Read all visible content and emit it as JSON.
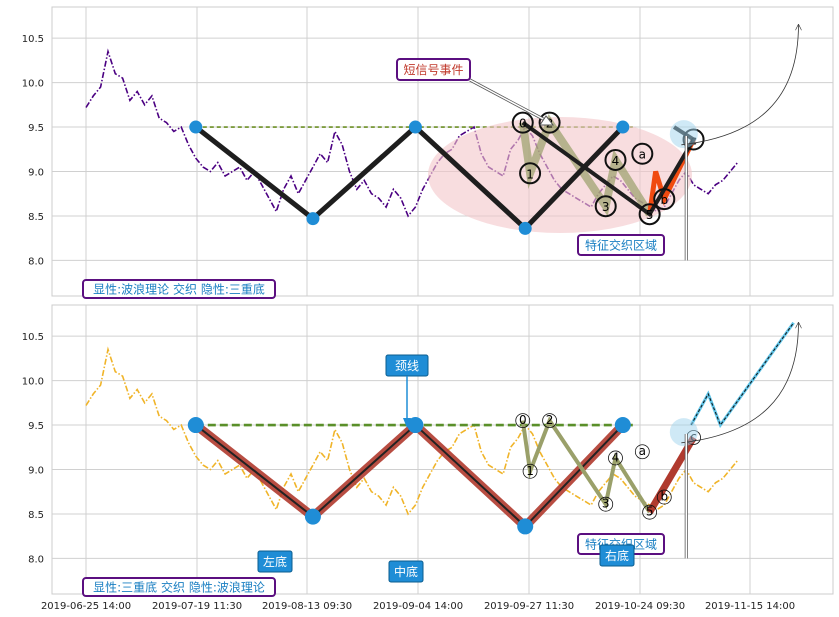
{
  "chart_data": [
    {
      "type": "line",
      "ylim": [
        7.6,
        10.85
      ],
      "yticks": [
        8.0,
        8.5,
        9.0,
        9.5,
        10.0,
        10.5
      ],
      "xtick_labels": [
        "2019-06-25 14:00",
        "2019-07-19 11:30",
        "2019-08-13 09:30",
        "2019-09-04 14:00",
        "2019-09-27 11:30",
        "2019-10-24 09:30",
        "2019-11-15 14:00"
      ],
      "grid": true,
      "series": [
        {
          "style": "dash-dot",
          "color": "#4b0082",
          "x": [
            0,
            3,
            6,
            9,
            12,
            15,
            18,
            21,
            24,
            27,
            30,
            33,
            36,
            39,
            42,
            45,
            48,
            51,
            54,
            57,
            60,
            63,
            66,
            69,
            72,
            75,
            78,
            81,
            84,
            87,
            90,
            93,
            96,
            99,
            102,
            105,
            108,
            111,
            114,
            117,
            120,
            123,
            126,
            129,
            132,
            135,
            138,
            141,
            144,
            147,
            150,
            153,
            156,
            159,
            162,
            165,
            168,
            171,
            174,
            177,
            180,
            183,
            186,
            189,
            192,
            195,
            198,
            201,
            204,
            207,
            210,
            213,
            216,
            219,
            222,
            225,
            228,
            231,
            234,
            237,
            240,
            243,
            246,
            249,
            252,
            255,
            258,
            261,
            264,
            267
          ],
          "y": [
            9.72,
            9.85,
            9.95,
            10.35,
            10.1,
            10.05,
            9.8,
            9.9,
            9.75,
            9.85,
            9.6,
            9.55,
            9.45,
            9.5,
            9.3,
            9.15,
            9.05,
            9.0,
            9.1,
            8.95,
            9.0,
            9.05,
            8.9,
            9.0,
            8.85,
            8.7,
            8.55,
            8.8,
            8.95,
            8.75,
            8.9,
            9.05,
            9.2,
            9.1,
            9.45,
            9.3,
            9.0,
            8.8,
            8.9,
            8.75,
            8.7,
            8.6,
            8.8,
            8.7,
            8.5,
            8.6,
            8.8,
            8.95,
            9.1,
            9.2,
            9.25,
            9.4,
            9.45,
            9.5,
            9.2,
            9.05,
            9.0,
            8.95,
            9.25,
            9.35,
            9.5,
            9.4,
            9.2,
            9.05,
            8.9,
            8.8,
            8.75,
            8.7,
            8.65,
            8.6,
            8.75,
            8.85,
            8.95,
            8.9,
            8.8,
            8.7,
            8.65,
            8.6,
            8.55,
            8.6,
            8.75,
            8.9,
            9.0,
            8.85,
            8.8,
            8.75,
            8.85,
            8.9,
            9.0,
            9.1
          ]
        }
      ],
      "pattern_points": {
        "x": [
          45,
          93,
          135,
          180,
          220
        ],
        "y": [
          9.5,
          8.47,
          9.5,
          8.36,
          9.5
        ]
      },
      "wave_points": [
        {
          "label": "0",
          "x": 179,
          "y": 9.55
        },
        {
          "label": "1",
          "x": 182,
          "y": 8.98
        },
        {
          "label": "2",
          "x": 190,
          "y": 9.55
        },
        {
          "label": "3",
          "x": 213,
          "y": 8.61
        },
        {
          "label": "4",
          "x": 217,
          "y": 9.13
        },
        {
          "label": "5",
          "x": 231,
          "y": 8.52
        },
        {
          "label": "a",
          "x": 228,
          "y": 9.2
        },
        {
          "label": "b",
          "x": 237,
          "y": 8.69
        },
        {
          "label": "c",
          "x": 249,
          "y": 9.36
        }
      ],
      "annotations": {
        "short_signal": "短信号事件",
        "feature_zone": "特征交织区域",
        "mode": "显性:波浪理论 交织 隐性:三重底"
      }
    },
    {
      "type": "line",
      "ylim": [
        7.6,
        10.85
      ],
      "yticks": [
        8.0,
        8.5,
        9.0,
        9.5,
        10.0,
        10.5
      ],
      "xtick_labels": [
        "2019-06-25 14:00",
        "2019-07-19 11:30",
        "2019-08-13 09:30",
        "2019-09-04 14:00",
        "2019-09-27 11:30",
        "2019-10-24 09:30",
        "2019-11-15 14:00"
      ],
      "grid": true,
      "series": [
        {
          "style": "dash-dot",
          "color": "#f0b429",
          "x": [
            0,
            3,
            6,
            9,
            12,
            15,
            18,
            21,
            24,
            27,
            30,
            33,
            36,
            39,
            42,
            45,
            48,
            51,
            54,
            57,
            60,
            63,
            66,
            69,
            72,
            75,
            78,
            81,
            84,
            87,
            90,
            93,
            96,
            99,
            102,
            105,
            108,
            111,
            114,
            117,
            120,
            123,
            126,
            129,
            132,
            135,
            138,
            141,
            144,
            147,
            150,
            153,
            156,
            159,
            162,
            165,
            168,
            171,
            174,
            177,
            180,
            183,
            186,
            189,
            192,
            195,
            198,
            201,
            204,
            207,
            210,
            213,
            216,
            219,
            222,
            225,
            228,
            231,
            234,
            237,
            240,
            243,
            246,
            249,
            252,
            255,
            258,
            261,
            264,
            267
          ],
          "y": [
            9.72,
            9.85,
            9.95,
            10.35,
            10.1,
            10.05,
            9.8,
            9.9,
            9.75,
            9.85,
            9.6,
            9.55,
            9.45,
            9.5,
            9.3,
            9.15,
            9.05,
            9.0,
            9.1,
            8.95,
            9.0,
            9.05,
            8.9,
            9.0,
            8.85,
            8.7,
            8.55,
            8.8,
            8.95,
            8.75,
            8.9,
            9.05,
            9.2,
            9.1,
            9.45,
            9.3,
            9.0,
            8.8,
            8.9,
            8.75,
            8.7,
            8.6,
            8.8,
            8.7,
            8.5,
            8.6,
            8.8,
            8.95,
            9.1,
            9.2,
            9.25,
            9.4,
            9.45,
            9.5,
            9.2,
            9.05,
            9.0,
            8.95,
            9.25,
            9.35,
            9.5,
            9.4,
            9.2,
            9.05,
            8.9,
            8.8,
            8.75,
            8.7,
            8.65,
            8.6,
            8.75,
            8.85,
            8.95,
            8.9,
            8.8,
            8.7,
            8.65,
            8.6,
            8.55,
            8.6,
            8.75,
            8.9,
            9.0,
            8.85,
            8.8,
            8.75,
            8.85,
            8.9,
            9.0,
            9.1
          ]
        }
      ],
      "pattern_points": {
        "x": [
          45,
          93,
          135,
          180,
          220
        ],
        "y": [
          9.5,
          8.47,
          9.5,
          8.36,
          9.5
        ]
      },
      "wave_points": [
        {
          "label": "0",
          "x": 179,
          "y": 9.55
        },
        {
          "label": "1",
          "x": 182,
          "y": 8.98
        },
        {
          "label": "2",
          "x": 190,
          "y": 9.55
        },
        {
          "label": "3",
          "x": 213,
          "y": 8.61
        },
        {
          "label": "4",
          "x": 217,
          "y": 9.13
        },
        {
          "label": "5",
          "x": 231,
          "y": 8.52
        },
        {
          "label": "a",
          "x": 228,
          "y": 9.2
        },
        {
          "label": "b",
          "x": 237,
          "y": 8.69
        },
        {
          "label": "c",
          "x": 249,
          "y": 9.36
        }
      ],
      "annotations": {
        "neckline": "颈线",
        "left_bottom": "左底",
        "middle_bottom": "中底",
        "right_bottom": "右底",
        "feature_zone": "特征交织区域",
        "mode": "显性:三重底 交织 隐性:波浪理论"
      }
    }
  ],
  "colors": {
    "point_blue": "#1f8dd6",
    "neckline_top": "#6b8e23",
    "neckline_bottom": "#5a8f29",
    "anno_border": "#5b0f80",
    "anno_text_blue": "#1a7fc2",
    "anno_text_red": "#c0392b",
    "zigzag_red": "#b03a2e",
    "wave_olive": "#9aa06a",
    "zone_pink": "#f4c6c9",
    "orange_red": "#f04a10"
  }
}
